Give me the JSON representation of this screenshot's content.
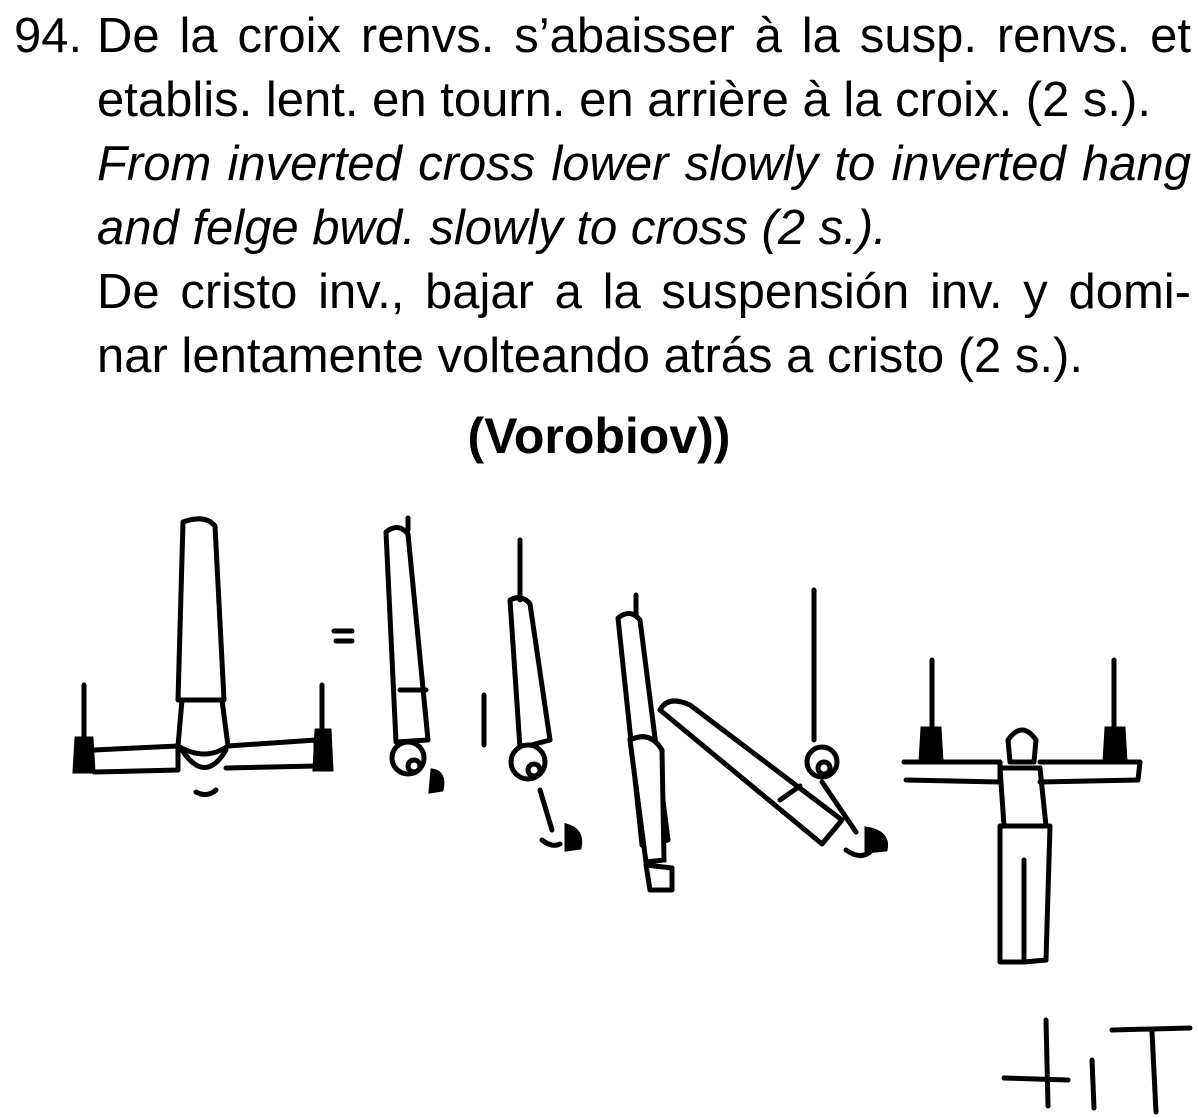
{
  "element": {
    "number": "94.",
    "text_fr": "De la croix renvs. s’abaisser à la susp. renvs. et etablis. lent. en tourn. en arrière à la croix. (2 s.).",
    "text_en": "From inverted cross lower slowly to inverted hang and felge bwd. slowly to cross (2 s.).",
    "text_es": "De cristo inv., bajar a la suspensión inv. y domi-nar lentamente volteando atrás a cristo (2 s.).",
    "author": "(Vorobiov))"
  },
  "illustration": {
    "figures": [
      "inverted-cross",
      "inverted-hang",
      "lowering",
      "felge-backward",
      "swing-through",
      "cross"
    ],
    "symbols": [
      "equals-mark",
      "difficulty-symbol"
    ]
  }
}
